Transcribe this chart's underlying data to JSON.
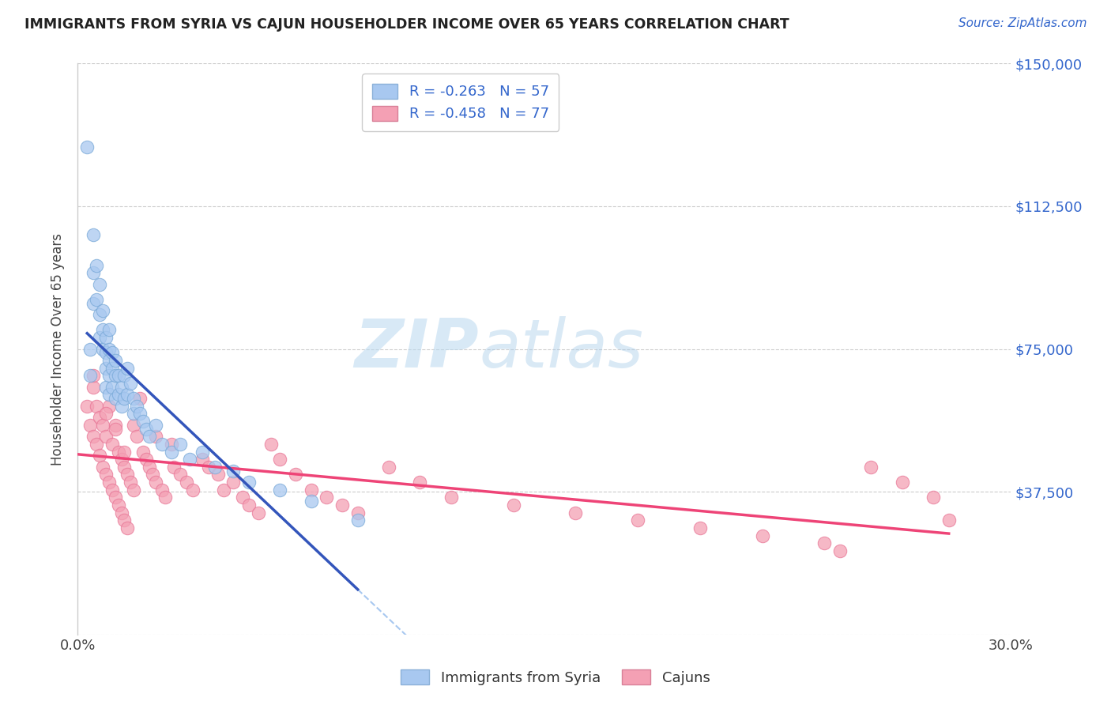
{
  "title": "IMMIGRANTS FROM SYRIA VS CAJUN HOUSEHOLDER INCOME OVER 65 YEARS CORRELATION CHART",
  "source": "Source: ZipAtlas.com",
  "ylabel": "Householder Income Over 65 years",
  "xlim": [
    0.0,
    0.3
  ],
  "ylim": [
    0,
    150000
  ],
  "xtick_vals": [
    0.0,
    0.05,
    0.1,
    0.15,
    0.2,
    0.25,
    0.3
  ],
  "xtick_labels": [
    "0.0%",
    "",
    "",
    "",
    "",
    "",
    "30.0%"
  ],
  "ytick_vals": [
    0,
    37500,
    75000,
    112500,
    150000
  ],
  "ytick_labels": [
    "",
    "$37,500",
    "$75,000",
    "$112,500",
    "$150,000"
  ],
  "legend_line1": "R = -0.263   N = 57",
  "legend_line2": "R = -0.458   N = 77",
  "watermark_zip": "ZIP",
  "watermark_atlas": "atlas",
  "legend_labels": [
    "Immigrants from Syria",
    "Cajuns"
  ],
  "blue_color": "#a8c8f0",
  "pink_color": "#f4a0b4",
  "blue_edge_color": "#7aaad8",
  "pink_edge_color": "#e87898",
  "blue_line_color": "#3355bb",
  "pink_line_color": "#ee4477",
  "dashed_line_color": "#a8c8f0",
  "background_color": "#ffffff",
  "grid_color": "#cccccc",
  "blue_scatter_x": [
    0.003,
    0.004,
    0.004,
    0.005,
    0.005,
    0.005,
    0.006,
    0.006,
    0.007,
    0.007,
    0.007,
    0.008,
    0.008,
    0.008,
    0.009,
    0.009,
    0.009,
    0.009,
    0.01,
    0.01,
    0.01,
    0.01,
    0.01,
    0.011,
    0.011,
    0.011,
    0.012,
    0.012,
    0.012,
    0.013,
    0.013,
    0.014,
    0.014,
    0.015,
    0.015,
    0.016,
    0.016,
    0.017,
    0.018,
    0.018,
    0.019,
    0.02,
    0.021,
    0.022,
    0.023,
    0.025,
    0.027,
    0.03,
    0.033,
    0.036,
    0.04,
    0.044,
    0.05,
    0.055,
    0.065,
    0.075,
    0.09
  ],
  "blue_scatter_y": [
    128000,
    75000,
    68000,
    105000,
    95000,
    87000,
    97000,
    88000,
    92000,
    84000,
    78000,
    85000,
    80000,
    75000,
    78000,
    74000,
    70000,
    65000,
    80000,
    75000,
    72000,
    68000,
    63000,
    74000,
    70000,
    65000,
    72000,
    68000,
    62000,
    68000,
    63000,
    65000,
    60000,
    68000,
    62000,
    70000,
    63000,
    66000,
    62000,
    58000,
    60000,
    58000,
    56000,
    54000,
    52000,
    55000,
    50000,
    48000,
    50000,
    46000,
    48000,
    44000,
    43000,
    40000,
    38000,
    35000,
    30000
  ],
  "pink_scatter_x": [
    0.003,
    0.004,
    0.005,
    0.005,
    0.006,
    0.006,
    0.007,
    0.007,
    0.008,
    0.008,
    0.009,
    0.009,
    0.01,
    0.01,
    0.011,
    0.011,
    0.012,
    0.012,
    0.013,
    0.013,
    0.014,
    0.014,
    0.015,
    0.015,
    0.016,
    0.016,
    0.017,
    0.018,
    0.018,
    0.019,
    0.02,
    0.021,
    0.022,
    0.023,
    0.024,
    0.025,
    0.027,
    0.028,
    0.03,
    0.031,
    0.033,
    0.035,
    0.037,
    0.04,
    0.042,
    0.045,
    0.047,
    0.05,
    0.053,
    0.055,
    0.058,
    0.062,
    0.065,
    0.07,
    0.075,
    0.08,
    0.085,
    0.09,
    0.1,
    0.11,
    0.12,
    0.14,
    0.16,
    0.18,
    0.2,
    0.22,
    0.24,
    0.245,
    0.255,
    0.265,
    0.275,
    0.28,
    0.005,
    0.009,
    0.012,
    0.015,
    0.025
  ],
  "pink_scatter_y": [
    60000,
    55000,
    65000,
    52000,
    60000,
    50000,
    57000,
    47000,
    55000,
    44000,
    52000,
    42000,
    60000,
    40000,
    50000,
    38000,
    55000,
    36000,
    48000,
    34000,
    46000,
    32000,
    44000,
    30000,
    42000,
    28000,
    40000,
    55000,
    38000,
    52000,
    62000,
    48000,
    46000,
    44000,
    42000,
    40000,
    38000,
    36000,
    50000,
    44000,
    42000,
    40000,
    38000,
    46000,
    44000,
    42000,
    38000,
    40000,
    36000,
    34000,
    32000,
    50000,
    46000,
    42000,
    38000,
    36000,
    34000,
    32000,
    44000,
    40000,
    36000,
    34000,
    32000,
    30000,
    28000,
    26000,
    24000,
    22000,
    44000,
    40000,
    36000,
    30000,
    68000,
    58000,
    54000,
    48000,
    52000
  ]
}
